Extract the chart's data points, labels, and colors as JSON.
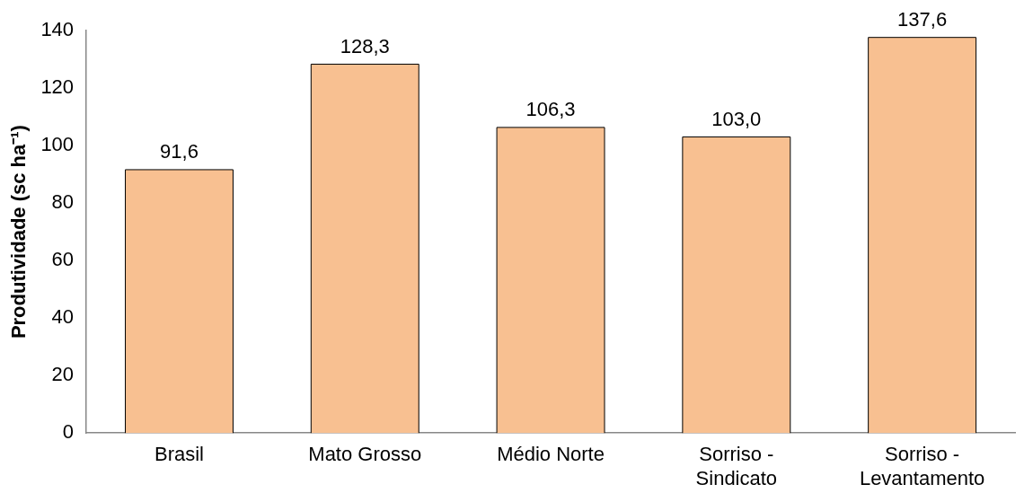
{
  "chart_data": {
    "type": "bar",
    "ylabel": "Produtividade (sc ha⁻¹)",
    "categories": [
      "Brasil",
      "Mato Grosso",
      "Médio Norte",
      "Sorriso -\nSindicato",
      "Sorriso -\nLevantamento"
    ],
    "values": [
      91.6,
      128.3,
      106.3,
      103.0,
      137.6
    ],
    "value_labels": [
      "91,6",
      "128,3",
      "106,3",
      "103,0",
      "137,6"
    ],
    "color": "#f8c091",
    "ylim": [
      0,
      140
    ],
    "yticks": [
      0,
      20,
      40,
      60,
      80,
      100,
      120,
      140
    ],
    "grid": false,
    "legend": false
  }
}
